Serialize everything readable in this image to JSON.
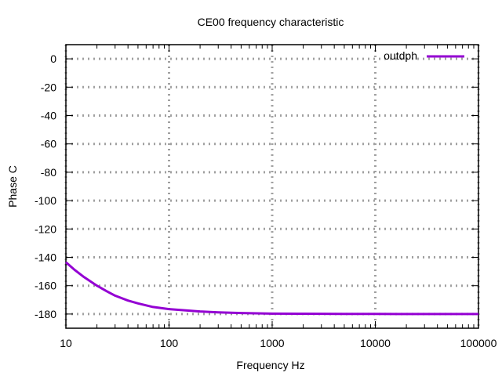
{
  "chart_data": {
    "type": "line",
    "title": "CE00 frequency characteristic",
    "xlabel": "Frequency Hz",
    "ylabel": "Phase C",
    "x_scale": "log",
    "xlim": [
      10,
      100000
    ],
    "ylim": [
      -190,
      10
    ],
    "x_ticks": [
      10,
      100,
      1000,
      10000,
      100000
    ],
    "x_tick_labels": [
      "10",
      "100",
      "1000",
      "10000",
      "100000"
    ],
    "y_ticks": [
      0,
      -20,
      -40,
      -60,
      -80,
      -100,
      -120,
      -140,
      -160,
      -180
    ],
    "y_tick_labels": [
      "0",
      "-20",
      "-40",
      "-60",
      "-80",
      "-100",
      "-120",
      "-140",
      "-160",
      "-180"
    ],
    "grid": true,
    "legend_position": "top-right",
    "series": [
      {
        "name": "outdph",
        "color": "#9400d3",
        "x": [
          10,
          12,
          15,
          20,
          25,
          30,
          40,
          50,
          70,
          100,
          150,
          200,
          300,
          500,
          1000,
          2000,
          5000,
          10000,
          20000,
          50000,
          100000
        ],
        "y": [
          -143.5,
          -148.5,
          -154,
          -160,
          -164,
          -167,
          -170.5,
          -172.5,
          -175,
          -176.5,
          -177.5,
          -178.2,
          -178.8,
          -179.3,
          -179.7,
          -179.8,
          -179.9,
          -179.9,
          -180,
          -180,
          -180
        ]
      }
    ]
  }
}
